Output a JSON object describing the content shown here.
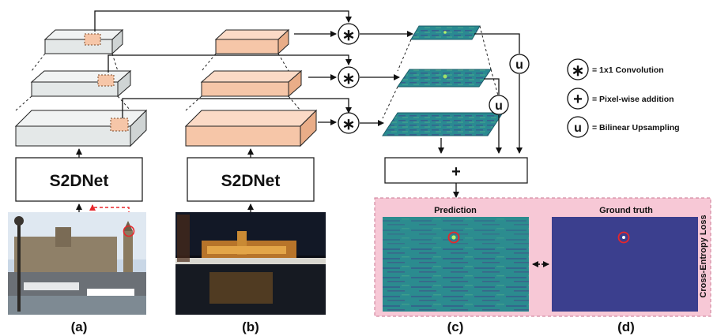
{
  "net_a_label": "S2DNet",
  "net_b_label": "S2DNet",
  "plus_symbol": "+",
  "legend": {
    "conv_symbol": "∗",
    "conv_label": "= 1x1 Convolution",
    "add_symbol": "+",
    "add_label": "= Pixel-wise addition",
    "up_symbol": "u",
    "up_label": "= Bilinear Upsampling"
  },
  "prediction_title": "Prediction",
  "ground_truth_title": "Ground truth",
  "loss_label": "Cross-Entropy Loss",
  "panel_labels": [
    "(a)",
    "(b)",
    "(c)",
    "(d)"
  ],
  "colors": {
    "feature_gray": "#e4e8e8",
    "feature_peach": "#f6c6a8",
    "loss_bg": "#f7c8d6",
    "heatmap": "#2a8a92",
    "ground_truth_bg": "#3b3f8e",
    "marker_red": "#e8262b"
  }
}
